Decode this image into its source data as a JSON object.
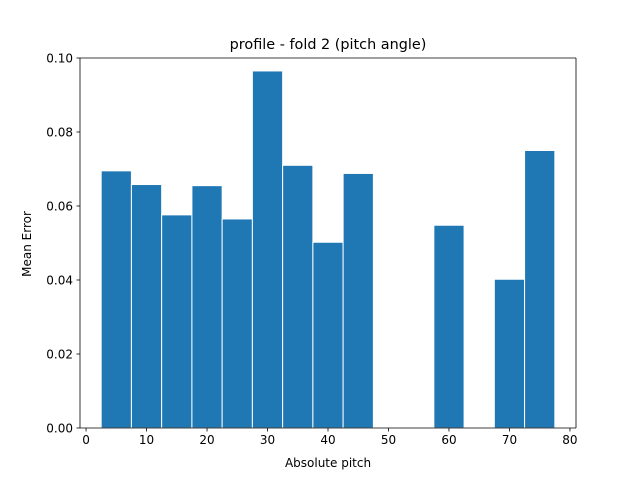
{
  "chart_data": {
    "type": "bar",
    "title": "profile - fold 2 (pitch angle)",
    "xlabel": "Absolute pitch",
    "ylabel": "Mean Error",
    "xlim": [
      -1.0,
      81.0
    ],
    "ylim": [
      0.0,
      0.1
    ],
    "xticks": [
      0,
      10,
      20,
      30,
      40,
      50,
      60,
      70,
      80
    ],
    "xtick_labels": [
      "0",
      "10",
      "20",
      "30",
      "40",
      "50",
      "60",
      "70",
      "80"
    ],
    "yticks": [
      0.0,
      0.02,
      0.04,
      0.06,
      0.08,
      0.1
    ],
    "ytick_labels": [
      "0.00",
      "0.02",
      "0.04",
      "0.06",
      "0.08",
      "0.10"
    ],
    "bar_width": 5,
    "bar_color": "#1f77b4",
    "bar_edge_color": "#ffffff",
    "grid": false,
    "legend": "none",
    "bars": [
      {
        "x": 5,
        "value": 0.0695
      },
      {
        "x": 10,
        "value": 0.0658
      },
      {
        "x": 15,
        "value": 0.0576
      },
      {
        "x": 20,
        "value": 0.0655
      },
      {
        "x": 25,
        "value": 0.0565
      },
      {
        "x": 30,
        "value": 0.0965
      },
      {
        "x": 35,
        "value": 0.071
      },
      {
        "x": 40,
        "value": 0.0502
      },
      {
        "x": 45,
        "value": 0.0688
      },
      {
        "x": 60,
        "value": 0.0548
      },
      {
        "x": 70,
        "value": 0.0402
      },
      {
        "x": 75,
        "value": 0.075
      }
    ]
  }
}
